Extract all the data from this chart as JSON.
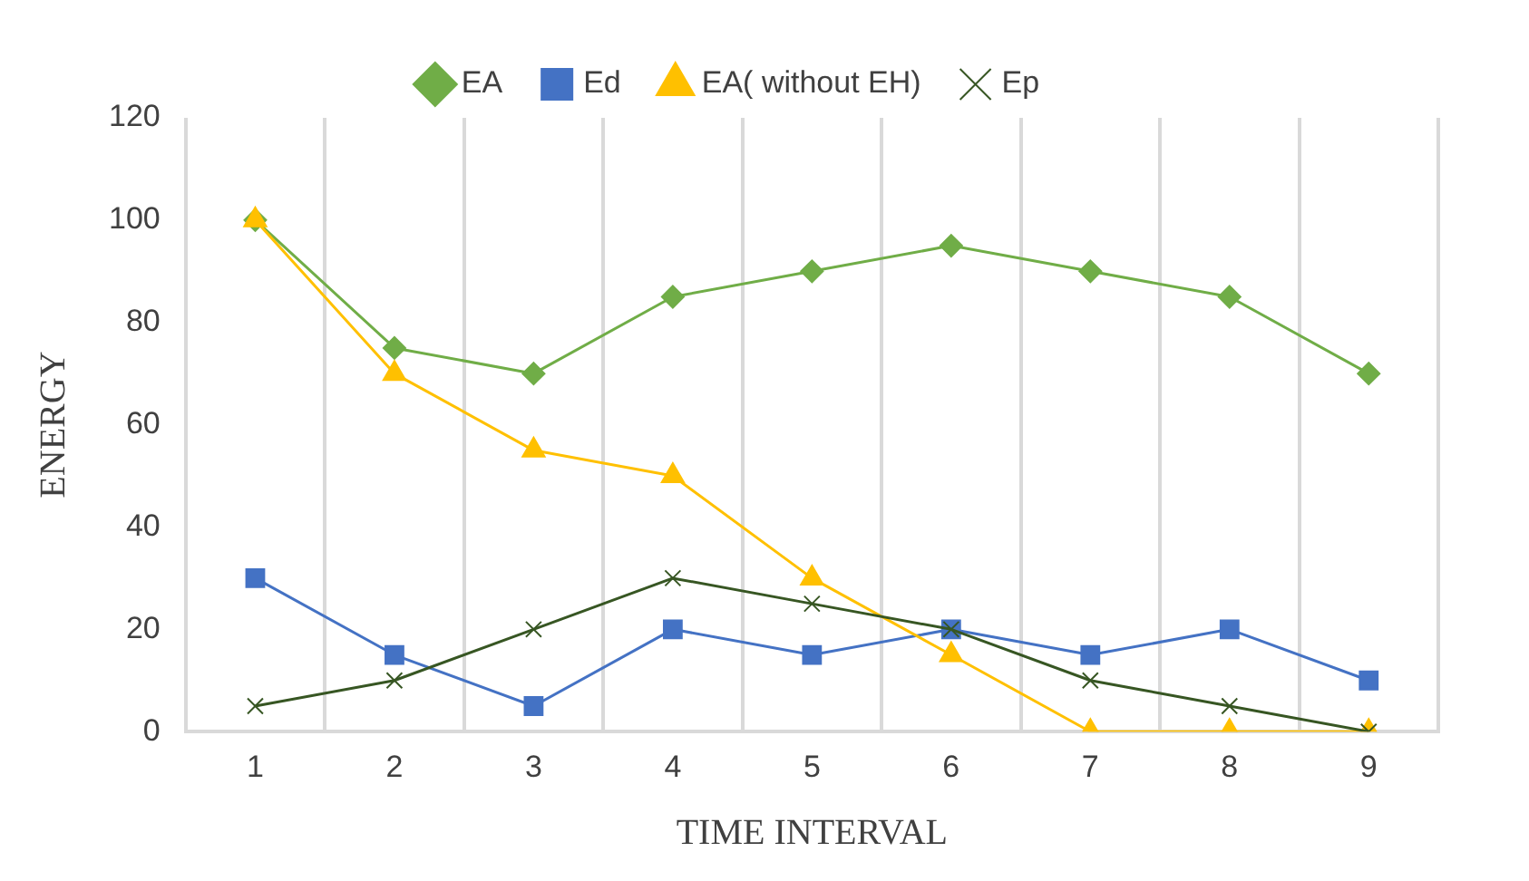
{
  "chart_data": {
    "type": "line",
    "xlabel": "TIME INTERVAL",
    "ylabel": "ENERGY",
    "categories": [
      "1",
      "2",
      "3",
      "4",
      "5",
      "6",
      "7",
      "8",
      "9"
    ],
    "series": [
      {
        "name": "EA",
        "color": "#70ad47",
        "marker": "diamond",
        "values": [
          100,
          75,
          70,
          85,
          90,
          95,
          90,
          85,
          70
        ]
      },
      {
        "name": "Ed",
        "color": "#4472c4",
        "marker": "square",
        "values": [
          30,
          15,
          5,
          20,
          15,
          20,
          15,
          20,
          10
        ]
      },
      {
        "name": "EA( without EH)",
        "color": "#ffc000",
        "marker": "triangle",
        "values": [
          100,
          70,
          55,
          50,
          30,
          15,
          0,
          0,
          0
        ]
      },
      {
        "name": "Ep",
        "color": "#375623",
        "marker": "cross",
        "values": [
          5,
          10,
          20,
          30,
          25,
          20,
          10,
          5,
          0
        ]
      }
    ],
    "ylim": [
      0,
      120
    ],
    "yticks": [
      0,
      20,
      40,
      60,
      80,
      100,
      120
    ],
    "grid": "x",
    "legend": "top",
    "line_style": "solid"
  }
}
